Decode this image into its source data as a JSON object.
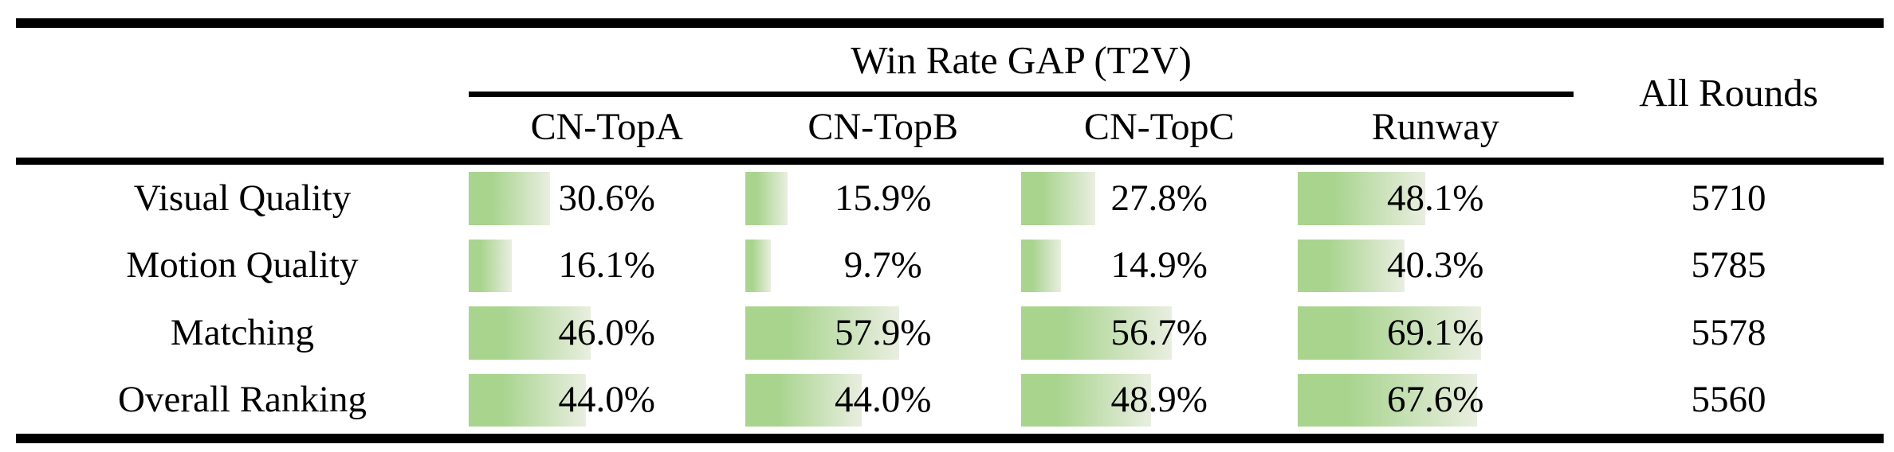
{
  "table": {
    "group_header": "Win Rate GAP (T2V)",
    "all_rounds_header": "All Rounds",
    "model_columns": [
      "CN-TopA",
      "CN-TopB",
      "CN-TopC",
      "Runway"
    ],
    "rows": [
      {
        "label": "Visual Quality",
        "values": [
          "30.6%",
          "15.9%",
          "27.8%",
          "48.1%"
        ],
        "pcts": [
          30.6,
          15.9,
          27.8,
          48.1
        ],
        "all_rounds": "5710"
      },
      {
        "label": "Motion Quality",
        "values": [
          "16.1%",
          "9.7%",
          "14.9%",
          "40.3%"
        ],
        "pcts": [
          16.1,
          9.7,
          14.9,
          40.3
        ],
        "all_rounds": "5785"
      },
      {
        "label": "Matching",
        "values": [
          "46.0%",
          "57.9%",
          "56.7%",
          "69.1%"
        ],
        "pcts": [
          46.0,
          57.9,
          56.7,
          69.1
        ],
        "all_rounds": "5578"
      },
      {
        "label": "Overall Ranking",
        "values": [
          "44.0%",
          "44.0%",
          "48.9%",
          "67.6%"
        ],
        "pcts": [
          44.0,
          44.0,
          48.9,
          67.6
        ],
        "all_rounds": "5560"
      }
    ],
    "colors": {
      "bar_green": "#a8d48e",
      "bar_fade": "#e9eee0",
      "rule_black": "#000000"
    }
  },
  "chart_data": {
    "type": "table",
    "title": "Win Rate GAP (T2V)",
    "categories": [
      "Visual Quality",
      "Motion Quality",
      "Matching",
      "Overall Ranking"
    ],
    "series": [
      {
        "name": "CN-TopA",
        "values": [
          30.6,
          16.1,
          46.0,
          44.0
        ]
      },
      {
        "name": "CN-TopB",
        "values": [
          15.9,
          9.7,
          57.9,
          44.0
        ]
      },
      {
        "name": "CN-TopC",
        "values": [
          27.8,
          14.9,
          56.7,
          48.9
        ]
      },
      {
        "name": "Runway",
        "values": [
          48.1,
          40.3,
          69.1,
          67.6
        ]
      },
      {
        "name": "All Rounds",
        "values": [
          5710,
          5785,
          5578,
          5560
        ]
      }
    ],
    "value_unit": "%",
    "bar_scale_max": 100,
    "layout": "in-cell gradient data bars, green fading right"
  }
}
